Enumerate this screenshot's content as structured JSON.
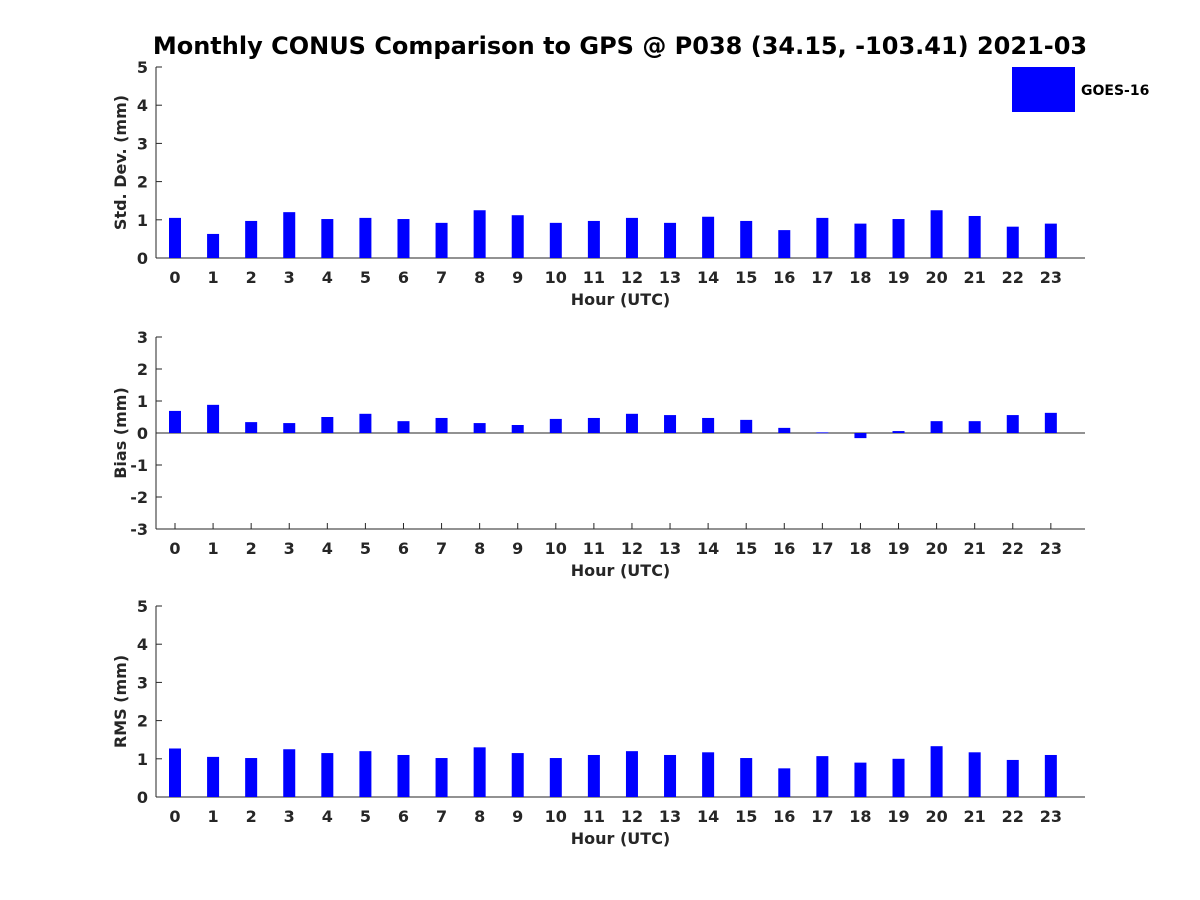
{
  "title": "Monthly CONUS Comparison to GPS @ P038 (34.15, -103.41) 2021-03",
  "legend": {
    "label": "GOES-16",
    "color": "#0000ff",
    "placement": "top-right"
  },
  "chart_data": [
    {
      "type": "bar",
      "xlabel": "Hour (UTC)",
      "ylabel": "Std. Dev. (mm)",
      "ylim": [
        0,
        5
      ],
      "yticks": [
        "0",
        "1",
        "2",
        "3",
        "4",
        "5"
      ],
      "categories": [
        "0",
        "1",
        "2",
        "3",
        "4",
        "5",
        "6",
        "7",
        "8",
        "9",
        "10",
        "11",
        "12",
        "13",
        "14",
        "15",
        "16",
        "17",
        "18",
        "19",
        "20",
        "21",
        "22",
        "23"
      ],
      "series": [
        {
          "name": "GOES-16",
          "values": [
            1.05,
            0.63,
            0.97,
            1.2,
            1.02,
            1.05,
            1.02,
            0.92,
            1.25,
            1.12,
            0.92,
            0.97,
            1.05,
            0.92,
            1.08,
            0.97,
            0.73,
            1.05,
            0.9,
            1.02,
            1.25,
            1.1,
            0.82,
            0.9
          ]
        }
      ]
    },
    {
      "type": "bar",
      "xlabel": "Hour (UTC)",
      "ylabel": "Bias (mm)",
      "ylim": [
        -3,
        3
      ],
      "yticks": [
        "-3",
        "-2",
        "-1",
        "0",
        "1",
        "2",
        "3"
      ],
      "categories": [
        "0",
        "1",
        "2",
        "3",
        "4",
        "5",
        "6",
        "7",
        "8",
        "9",
        "10",
        "11",
        "12",
        "13",
        "14",
        "15",
        "16",
        "17",
        "18",
        "19",
        "20",
        "21",
        "22",
        "23"
      ],
      "series": [
        {
          "name": "GOES-16",
          "values": [
            0.69,
            0.88,
            0.34,
            0.31,
            0.5,
            0.6,
            0.37,
            0.47,
            0.31,
            0.25,
            0.44,
            0.47,
            0.6,
            0.56,
            0.47,
            0.41,
            0.16,
            0.02,
            -0.16,
            0.06,
            0.37,
            0.37,
            0.56,
            0.63
          ]
        }
      ]
    },
    {
      "type": "bar",
      "xlabel": "Hour (UTC)",
      "ylabel": "RMS (mm)",
      "ylim": [
        0,
        5
      ],
      "yticks": [
        "0",
        "1",
        "2",
        "3",
        "4",
        "5"
      ],
      "categories": [
        "0",
        "1",
        "2",
        "3",
        "4",
        "5",
        "6",
        "7",
        "8",
        "9",
        "10",
        "11",
        "12",
        "13",
        "14",
        "15",
        "16",
        "17",
        "18",
        "19",
        "20",
        "21",
        "22",
        "23"
      ],
      "series": [
        {
          "name": "GOES-16",
          "values": [
            1.27,
            1.05,
            1.02,
            1.25,
            1.15,
            1.2,
            1.1,
            1.02,
            1.3,
            1.15,
            1.02,
            1.1,
            1.2,
            1.1,
            1.17,
            1.02,
            0.75,
            1.07,
            0.9,
            1.0,
            1.33,
            1.17,
            0.97,
            1.1
          ]
        }
      ]
    }
  ]
}
